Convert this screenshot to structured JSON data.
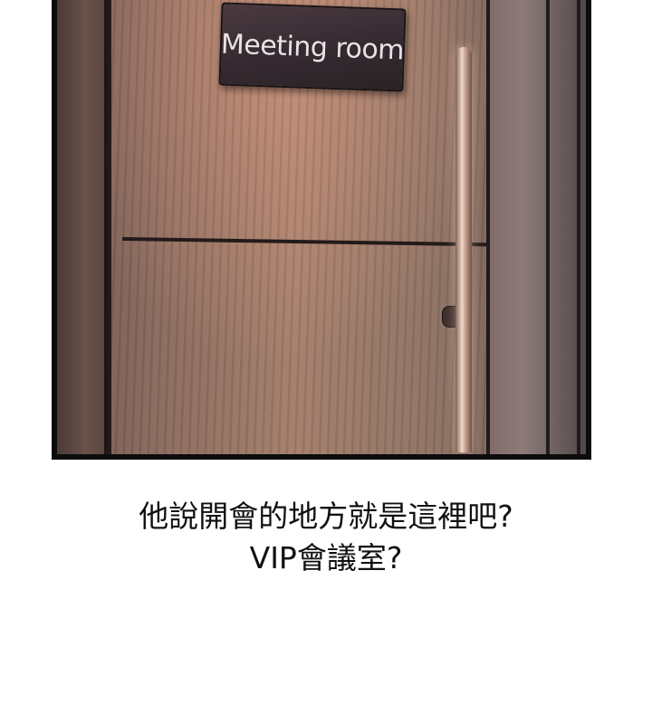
{
  "panel": {
    "sign_text": "Meeting room"
  },
  "caption": {
    "line1": "他說開會的地方就是這裡吧?",
    "line2": "VIP會議室?"
  }
}
